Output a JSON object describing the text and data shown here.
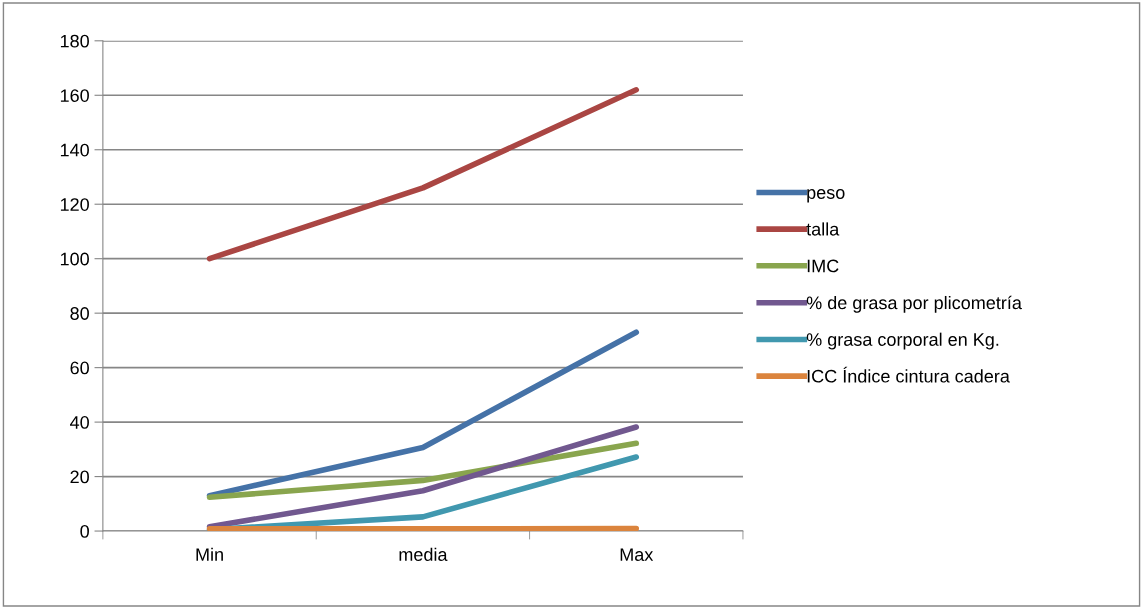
{
  "chart_data": {
    "type": "line",
    "categories": [
      "Min",
      "media",
      "Max"
    ],
    "series": [
      {
        "name": "peso",
        "color": "#4572a7",
        "values": [
          13,
          30.7,
          73
        ]
      },
      {
        "name": "talla",
        "color": "#aa4643",
        "values": [
          100,
          126,
          162
        ]
      },
      {
        "name": "IMC",
        "color": "#89a54e",
        "values": [
          12.4,
          18.6,
          32.2
        ]
      },
      {
        "name": "% de grasa por plicometría",
        "color": "#71588f",
        "values": [
          1.6,
          14.8,
          38.2
        ]
      },
      {
        "name": "% grasa corporal en Kg.",
        "color": "#4198af",
        "values": [
          0.5,
          5.2,
          27.2
        ]
      },
      {
        "name": "ICC Índice cintura cadera",
        "color": "#db843d",
        "values": [
          0.8,
          0.85,
          0.9
        ]
      }
    ],
    "ylim": [
      0,
      180
    ],
    "yticks": [
      0,
      20,
      40,
      60,
      80,
      100,
      120,
      140,
      160,
      180
    ],
    "grid": "y",
    "legend": "right",
    "marker": "none",
    "line_style": "solid"
  }
}
